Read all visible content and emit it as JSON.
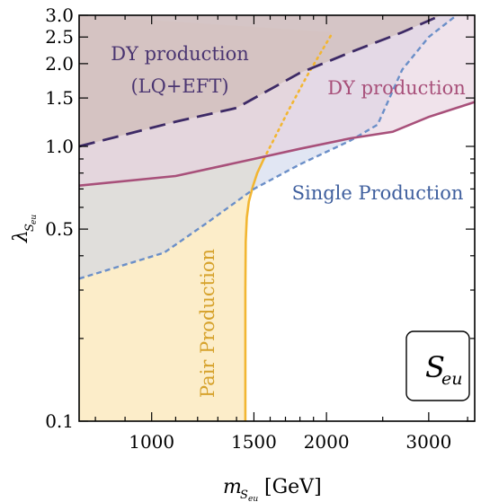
{
  "chart_data": {
    "type": "area",
    "xlabel": "m_{S_eu} [GeV]",
    "ylabel": "λ_{S_eu}",
    "x_scale": "log",
    "y_scale": "log",
    "xlim": [
      750,
      3600
    ],
    "ylim": [
      0.1,
      3.0
    ],
    "x_ticks": [
      1000,
      1500,
      2000,
      3000
    ],
    "x_tick_labels": [
      "1000",
      "1500",
      "2000",
      "3000"
    ],
    "y_ticks": [
      0.1,
      0.5,
      1.0,
      1.5,
      2.0,
      2.5,
      3.0
    ],
    "y_tick_labels": [
      "0.1",
      "0.5",
      "1.0",
      "1.5",
      "2.0",
      "2.5",
      "3.0"
    ],
    "inset_label": "S_eu",
    "colors": {
      "pair": "#f2b632",
      "single": "#6b8fc8",
      "dy": "#a8507a",
      "dy_lq_eft": "#3d2a66"
    },
    "series": [
      {
        "name": "Pair Production",
        "style": "solid",
        "line_color": "#f2b632",
        "fill_color": "#fbe9bb",
        "x": [
          1450,
          1450,
          1452,
          1458,
          1470,
          1495,
          1520,
          1560,
          1620,
          1720,
          1850,
          2050
        ],
        "y": [
          0.1,
          0.3,
          0.45,
          0.55,
          0.63,
          0.72,
          0.8,
          0.9,
          1.05,
          1.35,
          1.8,
          2.6
        ]
      },
      {
        "name": "Single Production",
        "style": "dashed",
        "line_color": "#6b8fc8",
        "fill_color": "#c9d2ea",
        "x": [
          750,
          1050,
          1250,
          1500,
          1800,
          2200,
          2450,
          2700,
          3000,
          3350
        ],
        "y": [
          0.33,
          0.41,
          0.53,
          0.7,
          0.86,
          1.05,
          1.2,
          1.9,
          2.5,
          3.0
        ]
      },
      {
        "name": "DY production",
        "style": "solid",
        "line_color": "#a8507a",
        "fill_color": "#e6d0de",
        "x": [
          750,
          1100,
          1500,
          1800,
          2200,
          2600,
          3000,
          3600
        ],
        "y": [
          0.72,
          0.78,
          0.9,
          0.98,
          1.07,
          1.13,
          1.28,
          1.45
        ]
      },
      {
        "name": "DY production (LQ+EFT)",
        "style": "dashed",
        "line_color": "#3d2a66",
        "fill_color": "#c9b5ac",
        "x": [
          750,
          1100,
          1400,
          1800,
          2200,
          2700,
          3150
        ],
        "y": [
          1.0,
          1.23,
          1.38,
          1.85,
          2.2,
          2.6,
          3.0
        ]
      }
    ],
    "annotations": [
      {
        "text": "DY production",
        "region": "upper-left"
      },
      {
        "text": "(LQ+EFT)",
        "region": "upper-left"
      },
      {
        "text": "DY production",
        "region": "upper-right"
      },
      {
        "text": "Single Production",
        "region": "middle-right"
      },
      {
        "text": "Pair Production",
        "region": "lower-middle"
      }
    ]
  }
}
